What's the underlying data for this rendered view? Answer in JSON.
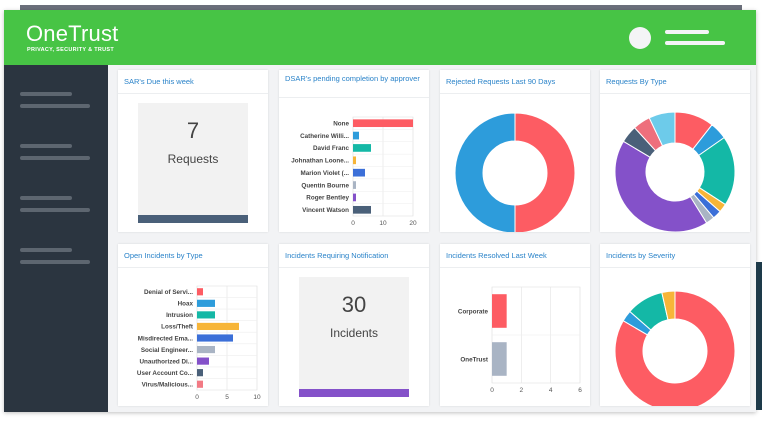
{
  "header": {
    "logo": "OneTrust",
    "tagline": "PRIVACY, SECURITY & TRUST"
  },
  "cards": {
    "sar": {
      "title": "SAR's Due this week",
      "value": "7",
      "label": "Requests",
      "bar_color": "#4a6079"
    },
    "dsar": {
      "title": "DSAR's pending completion by approver"
    },
    "rejected": {
      "title": "Rejected Requests Last 90 Days"
    },
    "bytype": {
      "title": "Requests By Type"
    },
    "open": {
      "title": "Open Incidents by Type"
    },
    "notif": {
      "title": "Incidents Requiring Notification",
      "value": "30",
      "label": "Incidents",
      "bar_color": "#8451c9"
    },
    "resolved": {
      "title": "Incidents Resolved Last Week"
    },
    "severity": {
      "title": "Incidents by Severity"
    }
  },
  "chart_data": [
    {
      "id": "dsar",
      "type": "bar",
      "orientation": "horizontal",
      "categories": [
        "None",
        "Catherine Willi...",
        "David Franc",
        "Johnathan Loone...",
        "Marion Violet (...",
        "Quentin Bourne",
        "Roger Bentley",
        "Vincent Watson"
      ],
      "values": [
        20,
        2,
        6,
        1,
        4,
        1,
        1,
        6
      ],
      "colors": [
        "#fd5c63",
        "#2d9cdb",
        "#14b8a6",
        "#f7b538",
        "#3b6fd8",
        "#a9b4c4",
        "#8451c9",
        "#4a6079"
      ],
      "xlim": [
        0,
        20
      ],
      "ticks": [
        0,
        10,
        20
      ],
      "grid": true
    },
    {
      "id": "rejected",
      "type": "pie",
      "donut": true,
      "values": [
        50,
        50
      ],
      "colors": [
        "#fd5c63",
        "#2d9cdb"
      ]
    },
    {
      "id": "bytype",
      "type": "pie",
      "donut": true,
      "values": [
        9,
        4,
        16,
        2,
        2,
        2,
        36,
        4,
        4,
        6
      ],
      "colors": [
        "#fd5c63",
        "#2d9cdb",
        "#14b8a6",
        "#f7b538",
        "#3b6fd8",
        "#a9b4c4",
        "#8451c9",
        "#4a6079",
        "#ee6f7c",
        "#6dcbea"
      ]
    },
    {
      "id": "open",
      "type": "bar",
      "orientation": "horizontal",
      "categories": [
        "Denial of Servi...",
        "Hoax",
        "Intrusion",
        "Loss/Theft",
        "Misdirected Ema...",
        "Social Engineer...",
        "Unauthorized Di...",
        "User Account Co...",
        "Virus/Malicious..."
      ],
      "values": [
        1,
        3,
        3,
        7,
        6,
        3,
        2,
        1,
        1
      ],
      "colors": [
        "#fd5c63",
        "#2d9cdb",
        "#14b8a6",
        "#f7b538",
        "#3b6fd8",
        "#a9b4c4",
        "#8451c9",
        "#4a6079",
        "#f27a84"
      ],
      "xlim": [
        0,
        10
      ],
      "ticks": [
        0,
        5,
        10
      ],
      "grid": true
    },
    {
      "id": "resolved",
      "type": "bar",
      "orientation": "horizontal",
      "categories": [
        "Corporate",
        "OneTrust"
      ],
      "values": [
        1,
        1
      ],
      "colors": [
        "#fd5c63",
        "#a9b4c4"
      ],
      "xlim": [
        0,
        6
      ],
      "ticks": [
        0,
        2,
        4,
        6
      ],
      "grid": true
    },
    {
      "id": "severity",
      "type": "pie",
      "donut": true,
      "values": [
        83,
        3,
        10,
        3.5
      ],
      "colors": [
        "#fd5c63",
        "#2d9cdb",
        "#14b8a6",
        "#f7b538"
      ]
    }
  ]
}
